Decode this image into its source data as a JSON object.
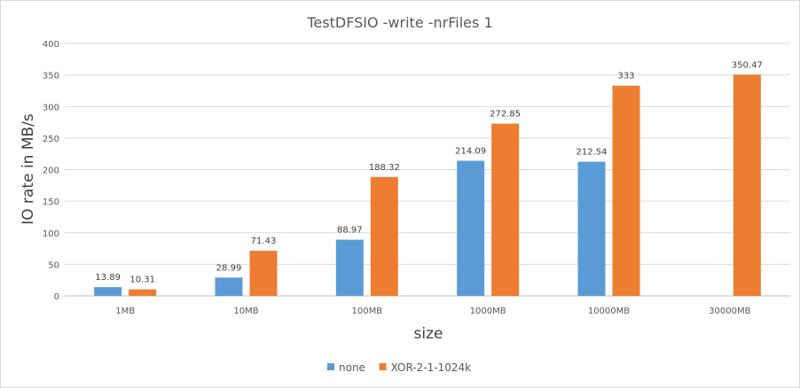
{
  "chart_data": {
    "type": "bar",
    "title": "TestDFSIO -write -nrFiles 1",
    "xlabel": "size",
    "ylabel": "IO rate in MB/s",
    "ylim": [
      0,
      400
    ],
    "yticks": [
      0,
      50,
      100,
      150,
      200,
      250,
      300,
      350,
      400
    ],
    "grid": true,
    "legend_position": "bottom",
    "categories": [
      "1MB",
      "10MB",
      "100MB",
      "1000MB",
      "10000MB",
      "30000MB"
    ],
    "series": [
      {
        "name": "none",
        "color": "#5B9BD5",
        "values": [
          13.89,
          28.99,
          88.97,
          214.09,
          212.54,
          null
        ],
        "labels": [
          "13.89",
          "28.99",
          "88.97",
          "214.09",
          "212.54",
          ""
        ]
      },
      {
        "name": "XOR-2-1-1024k",
        "color": "#ED7D31",
        "values": [
          10.31,
          71.43,
          188.32,
          272.85,
          333,
          350.47
        ],
        "labels": [
          "10.31",
          "71.43",
          "188.32",
          "272.85",
          "333",
          "350.47"
        ]
      }
    ]
  }
}
